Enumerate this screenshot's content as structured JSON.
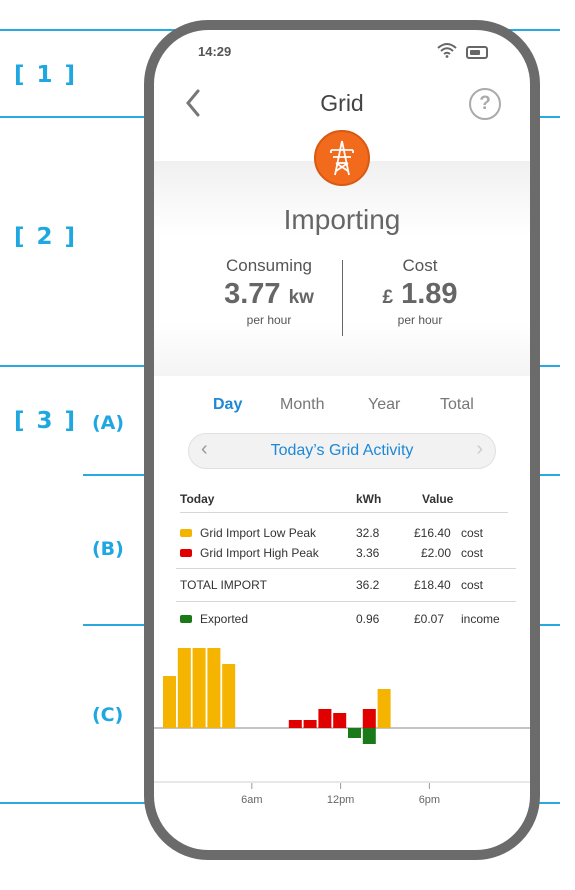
{
  "annotations": {
    "sections": [
      "[ 1 ]",
      "[ 2 ]",
      "[ 3 ]"
    ],
    "subsections": [
      "(A)",
      "(B)",
      "(C)"
    ]
  },
  "status_bar": {
    "time": "14:29"
  },
  "nav": {
    "title": "Grid",
    "back_icon": "chevron-left-icon",
    "help_icon": "question-mark-icon",
    "help_glyph": "?"
  },
  "hero": {
    "icon": "power-pylon-icon",
    "icon_color": "#f26b1d",
    "status": "Importing",
    "consuming": {
      "label": "Consuming",
      "value": "3.77",
      "unit": "kw",
      "period": "per hour"
    },
    "cost": {
      "label": "Cost",
      "currency": "£",
      "value": "1.89",
      "period": "per hour"
    }
  },
  "period_tabs": {
    "items": [
      "Day",
      "Month",
      "Year",
      "Total"
    ],
    "selected": "Day",
    "accent": "#1e88d6"
  },
  "activity": {
    "title": "Today’s Grid Activity",
    "prev_glyph": "‹",
    "next_glyph": "›"
  },
  "table": {
    "headers": [
      "Today",
      "kWh",
      "Value"
    ],
    "rows": [
      {
        "label": "Grid Import Low Peak",
        "color": "#f5b400",
        "kwh": "32.8",
        "value": "£16.40",
        "kind": "cost"
      },
      {
        "label": "Grid Import High Peak",
        "color": "#e00000",
        "kwh": "3.36",
        "value": "£2.00",
        "kind": "cost"
      }
    ],
    "total": {
      "label": "TOTAL IMPORT",
      "kwh": "36.2",
      "value": "£18.40",
      "kind": "cost"
    },
    "exported": {
      "label": "Exported",
      "color": "#1a7a1a",
      "kwh": "0.96",
      "value": "£0.07",
      "kind": "income"
    }
  },
  "chart_data": {
    "type": "bar",
    "x_ticks": [
      "6am",
      "12pm",
      "6pm"
    ],
    "x_tick_hours": [
      6,
      12,
      18
    ],
    "colors": {
      "low_peak": "#f5b400",
      "high_peak": "#e00000",
      "exported": "#1a7a1a"
    },
    "series": [
      {
        "hour": 0.0,
        "value": 0.52,
        "type": "low_peak"
      },
      {
        "hour": 1.0,
        "value": 0.8,
        "type": "low_peak"
      },
      {
        "hour": 2.0,
        "value": 0.8,
        "type": "low_peak"
      },
      {
        "hour": 3.0,
        "value": 0.8,
        "type": "low_peak"
      },
      {
        "hour": 4.0,
        "value": 0.64,
        "type": "low_peak"
      },
      {
        "hour": 8.5,
        "value": 0.08,
        "type": "high_peak"
      },
      {
        "hour": 9.5,
        "value": 0.08,
        "type": "high_peak"
      },
      {
        "hour": 10.5,
        "value": 0.19,
        "type": "high_peak"
      },
      {
        "hour": 11.5,
        "value": 0.15,
        "type": "high_peak"
      },
      {
        "hour": 12.5,
        "value": -0.1,
        "type": "exported"
      },
      {
        "hour": 13.5,
        "value": 0.19,
        "type": "high_peak"
      },
      {
        "hour": 13.5,
        "value": -0.16,
        "type": "exported"
      },
      {
        "hour": 14.5,
        "value": 0.39,
        "type": "low_peak"
      }
    ]
  }
}
